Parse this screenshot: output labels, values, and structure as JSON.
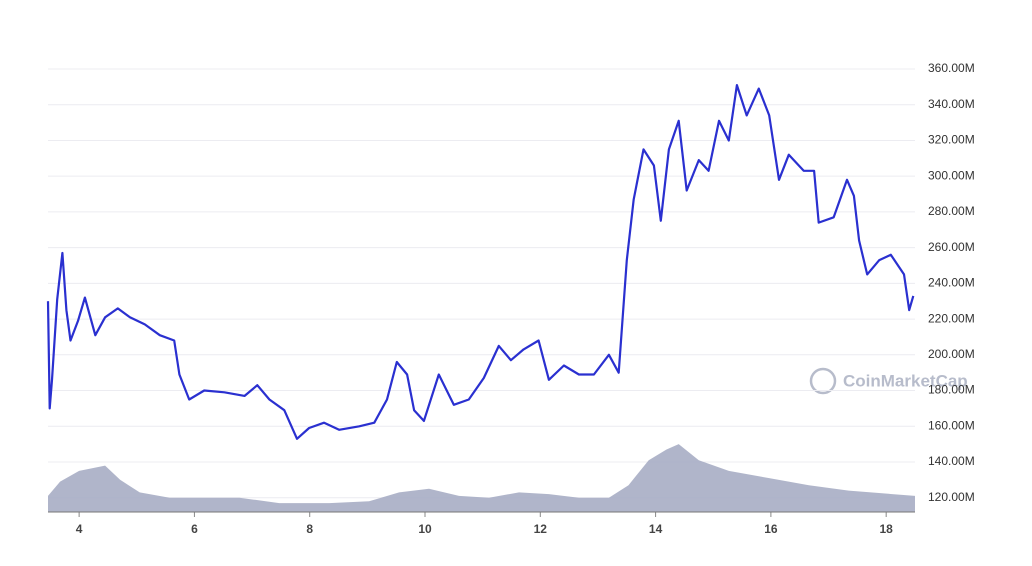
{
  "chart_data": {
    "type": "line",
    "xlim": [
      3.46,
      18.5
    ],
    "xticks": [
      4,
      6,
      8,
      10,
      12,
      14,
      16,
      18
    ],
    "ylim": [
      112,
      360
    ],
    "yticks": [
      {
        "value": 120,
        "label": "120.00M"
      },
      {
        "value": 140,
        "label": "140.00M"
      },
      {
        "value": 160,
        "label": "160.00M"
      },
      {
        "value": 180,
        "label": "180.00M"
      },
      {
        "value": 200,
        "label": "200.00M"
      },
      {
        "value": 220,
        "label": "220.00M"
      },
      {
        "value": 240,
        "label": "240.00M"
      },
      {
        "value": 260,
        "label": "260.00M"
      },
      {
        "value": 280,
        "label": "280.00M"
      },
      {
        "value": 300,
        "label": "300.00M"
      },
      {
        "value": 320,
        "label": "320.00M"
      },
      {
        "value": 340,
        "label": "340.00M"
      },
      {
        "value": 360,
        "label": "360.00M"
      }
    ],
    "grid": true,
    "annotation": "CoinMarketCap",
    "series": [
      {
        "type": "line",
        "color": "#2a30d0",
        "x": [
          3.46,
          3.49,
          3.53,
          3.62,
          3.71,
          3.78,
          3.85,
          3.98,
          4.1,
          4.28,
          4.45,
          4.67,
          4.88,
          5.14,
          5.4,
          5.65,
          5.74,
          5.91,
          6.17,
          6.52,
          6.87,
          7.09,
          7.3,
          7.56,
          7.78,
          7.99,
          8.25,
          8.51,
          8.86,
          9.12,
          9.34,
          9.51,
          9.69,
          9.81,
          9.98,
          10.24,
          10.5,
          10.76,
          11.02,
          11.28,
          11.49,
          11.71,
          11.97,
          12.15,
          12.41,
          12.67,
          12.93,
          13.19,
          13.36,
          13.5,
          13.62,
          13.79,
          13.97,
          14.09,
          14.23,
          14.4,
          14.54,
          14.75,
          14.92,
          15.1,
          15.27,
          15.41,
          15.58,
          15.79,
          15.97,
          16.14,
          16.31,
          16.57,
          16.75,
          16.83,
          17.09,
          17.32,
          17.44,
          17.53,
          17.67,
          17.88,
          18.08,
          18.31,
          18.4,
          18.47
        ],
        "values": [
          230,
          170,
          186,
          231,
          257,
          225,
          208,
          219,
          232,
          211,
          221,
          226,
          221,
          217,
          211,
          208,
          189,
          175,
          180,
          179,
          177,
          183,
          175,
          169,
          153,
          159,
          162,
          158,
          160,
          162,
          175,
          196,
          189,
          169,
          163,
          189,
          172,
          175,
          187,
          205,
          197,
          203,
          208,
          186,
          194,
          189,
          189,
          200,
          190,
          253,
          287,
          315,
          306,
          275,
          315,
          331,
          292,
          309,
          303,
          331,
          320,
          351,
          334,
          349,
          334,
          298,
          312,
          303,
          303,
          274,
          277,
          298,
          289,
          264,
          245,
          253,
          256,
          245,
          225,
          233
        ]
      },
      {
        "type": "area",
        "color": "#a7adc4",
        "x": [
          3.46,
          3.67,
          4.0,
          4.45,
          4.71,
          5.05,
          5.57,
          6.09,
          6.78,
          7.47,
          8.34,
          9.03,
          9.55,
          10.07,
          10.59,
          11.11,
          11.63,
          12.15,
          12.67,
          13.19,
          13.53,
          13.88,
          14.19,
          14.4,
          14.75,
          15.27,
          15.97,
          16.66,
          17.35,
          18.5
        ],
        "values": [
          121,
          129,
          135,
          138,
          130,
          123,
          120,
          120,
          120,
          117,
          117,
          118,
          123,
          125,
          121,
          120,
          123,
          122,
          120,
          120,
          127,
          141,
          147,
          150,
          141,
          135,
          131,
          127,
          124,
          121
        ]
      }
    ]
  }
}
